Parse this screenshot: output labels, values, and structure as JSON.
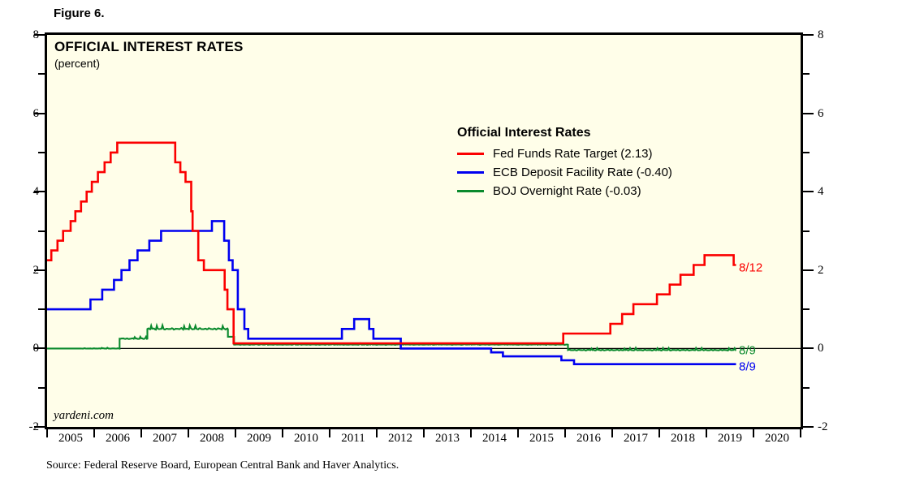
{
  "figure_label": "Figure 6.",
  "chart_data": {
    "type": "line",
    "title": "OFFICIAL INTEREST RATES",
    "subtitle": "(percent)",
    "watermark": "yardeni.com",
    "source_note": "Source: Federal Reserve Board, European Central Bank and Haver Analytics.",
    "background_color": "#fffee9",
    "border_color": "#000000",
    "zero_line_color": "#000000",
    "legend": {
      "title": "Official Interest Rates",
      "position": "center-right"
    },
    "xaxis": {
      "range": [
        2005,
        2021
      ],
      "tick_years": [
        2005,
        2006,
        2007,
        2008,
        2009,
        2010,
        2011,
        2012,
        2013,
        2014,
        2015,
        2016,
        2017,
        2018,
        2019,
        2020,
        2021
      ],
      "labels": [
        "2005",
        "2006",
        "2007",
        "2008",
        "2009",
        "2010",
        "2011",
        "2012",
        "2013",
        "2014",
        "2015",
        "2016",
        "2017",
        "2018",
        "2019",
        "2020"
      ]
    },
    "yaxis": {
      "range": [
        -2,
        8
      ],
      "major_ticks": [
        8,
        6,
        4,
        2,
        0,
        -2
      ],
      "minor_ticks": [
        7,
        5,
        3,
        1,
        -1
      ],
      "zero_line": true
    },
    "series": [
      {
        "id": "fed-funds",
        "name": "Fed Funds Rate Target (2.13)",
        "color": "#fb0000",
        "width": 2.6,
        "last_value": 2.13,
        "end_x": 2019.63,
        "steps": [
          [
            2005.0,
            2.25
          ],
          [
            2005.09,
            2.5
          ],
          [
            2005.22,
            2.75
          ],
          [
            2005.34,
            3.0
          ],
          [
            2005.5,
            3.25
          ],
          [
            2005.6,
            3.5
          ],
          [
            2005.72,
            3.75
          ],
          [
            2005.84,
            4.0
          ],
          [
            2005.95,
            4.25
          ],
          [
            2006.08,
            4.5
          ],
          [
            2006.22,
            4.75
          ],
          [
            2006.35,
            5.0
          ],
          [
            2006.49,
            5.25
          ],
          [
            2007.72,
            4.75
          ],
          [
            2007.83,
            4.5
          ],
          [
            2007.94,
            4.25
          ],
          [
            2008.06,
            3.5
          ],
          [
            2008.09,
            3.0
          ],
          [
            2008.21,
            2.25
          ],
          [
            2008.33,
            2.0
          ],
          [
            2008.77,
            1.5
          ],
          [
            2008.83,
            1.0
          ],
          [
            2008.96,
            0.13
          ],
          [
            2015.96,
            0.38
          ],
          [
            2016.96,
            0.63
          ],
          [
            2017.21,
            0.88
          ],
          [
            2017.45,
            1.13
          ],
          [
            2017.95,
            1.38
          ],
          [
            2018.22,
            1.63
          ],
          [
            2018.45,
            1.88
          ],
          [
            2018.73,
            2.13
          ],
          [
            2018.96,
            2.38
          ],
          [
            2019.58,
            2.13
          ]
        ]
      },
      {
        "id": "ecb-deposit",
        "name": "ECB Deposit Facility Rate (-0.40)",
        "color": "#0000f0",
        "width": 2.6,
        "last_value": -0.4,
        "end_x": 2019.63,
        "steps": [
          [
            2005.0,
            1.0
          ],
          [
            2005.92,
            1.25
          ],
          [
            2006.17,
            1.5
          ],
          [
            2006.42,
            1.75
          ],
          [
            2006.58,
            2.0
          ],
          [
            2006.75,
            2.25
          ],
          [
            2006.92,
            2.5
          ],
          [
            2007.17,
            2.75
          ],
          [
            2007.42,
            3.0
          ],
          [
            2008.5,
            3.25
          ],
          [
            2008.76,
            2.75
          ],
          [
            2008.86,
            2.25
          ],
          [
            2008.94,
            2.0
          ],
          [
            2009.05,
            1.0
          ],
          [
            2009.19,
            0.5
          ],
          [
            2009.27,
            0.25
          ],
          [
            2011.26,
            0.5
          ],
          [
            2011.52,
            0.75
          ],
          [
            2011.84,
            0.5
          ],
          [
            2011.93,
            0.25
          ],
          [
            2012.51,
            0.0
          ],
          [
            2014.43,
            -0.1
          ],
          [
            2014.68,
            -0.2
          ],
          [
            2015.92,
            -0.3
          ],
          [
            2016.19,
            -0.4
          ]
        ]
      },
      {
        "id": "boj-overnight",
        "name": "BOJ Overnight Rate (-0.03)",
        "color": "#0a8a2d",
        "width": 2.1,
        "last_value": -0.03,
        "end_x": 2019.63,
        "steps": [
          [
            2005.0,
            0.0
          ],
          [
            2006.54,
            0.25
          ],
          [
            2007.13,
            0.5
          ],
          [
            2008.84,
            0.3
          ],
          [
            2008.97,
            0.1
          ],
          [
            2016.06,
            -0.04
          ]
        ],
        "noisy_ranges": [
          [
            2005.7,
            2006.54,
            0.008
          ],
          [
            2006.54,
            2007.13,
            0.02
          ],
          [
            2007.13,
            2008.84,
            0.032
          ],
          [
            2008.97,
            2016.06,
            0.01
          ],
          [
            2016.06,
            2019.63,
            0.018
          ]
        ]
      }
    ],
    "annotations": [
      {
        "series_id": "fed-funds",
        "text": "8/12",
        "x": 2019.69,
        "y": 2.06,
        "color": "#fb0000"
      },
      {
        "series_id": "boj-overnight",
        "text": "8/9",
        "x": 2019.69,
        "y": -0.05,
        "color": "#0a8a2d"
      },
      {
        "series_id": "ecb-deposit",
        "text": "8/9",
        "x": 2019.69,
        "y": -0.47,
        "color": "#0000f0"
      }
    ]
  }
}
